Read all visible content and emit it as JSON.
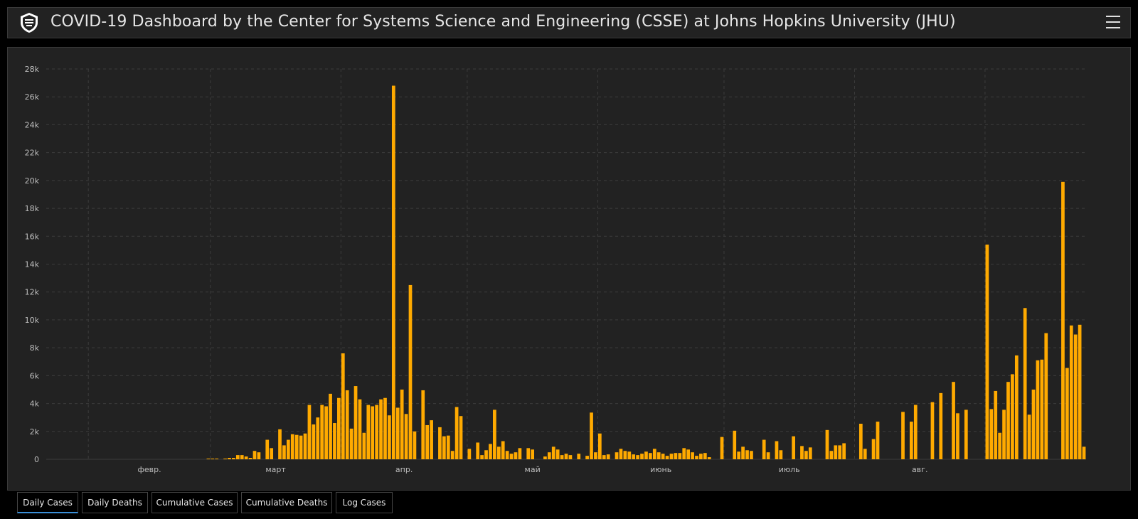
{
  "header": {
    "title": "COVID-19 Dashboard by the Center for Systems Science and Engineering (CSSE) at Johns Hopkins University (JHU)",
    "logo_icon": "jhu-shield-icon",
    "menu_icon": "hamburger-menu-icon"
  },
  "colors": {
    "bar": "#ffaa00",
    "background": "#222222",
    "grid": "#3c3c3c"
  },
  "chart_data": {
    "type": "bar",
    "title": "",
    "xlabel": "",
    "ylabel": "",
    "ylim": [
      0,
      28000
    ],
    "yticks": [
      0,
      2000,
      4000,
      6000,
      8000,
      10000,
      12000,
      14000,
      16000,
      18000,
      20000,
      22000,
      24000,
      26000,
      28000
    ],
    "ytick_labels": [
      "0",
      "2k",
      "4k",
      "6k",
      "8k",
      "10k",
      "12k",
      "14k",
      "16k",
      "18k",
      "20k",
      "22k",
      "24k",
      "26k",
      "28k"
    ],
    "month_labels": [
      "февр.",
      "март",
      "апр.",
      "май",
      "июнь",
      "июль",
      "авг."
    ],
    "grid": true,
    "start_date": "2020-01-22",
    "values": [
      0,
      0,
      0,
      0,
      0,
      0,
      0,
      0,
      0,
      0,
      0,
      0,
      0,
      0,
      0,
      0,
      0,
      0,
      0,
      0,
      0,
      0,
      0,
      0,
      0,
      0,
      0,
      0,
      0,
      0,
      0,
      0,
      0,
      0,
      0,
      0,
      0,
      0,
      50,
      50,
      50,
      0,
      50,
      100,
      100,
      300,
      300,
      200,
      100,
      600,
      500,
      0,
      1400,
      800,
      0,
      2150,
      1000,
      1400,
      1800,
      1750,
      1700,
      1850,
      3900,
      2500,
      3000,
      3900,
      3800,
      4700,
      2600,
      4400,
      7600,
      4950,
      2200,
      5250,
      4300,
      1900,
      3900,
      3800,
      3900,
      4300,
      4400,
      3150,
      26800,
      3700,
      5000,
      3250,
      12500,
      2000,
      0,
      4950,
      2450,
      2800,
      0,
      2300,
      1650,
      1700,
      600,
      3750,
      3100,
      0,
      750,
      0,
      1200,
      300,
      650,
      1100,
      3550,
      900,
      1300,
      600,
      400,
      500,
      800,
      0,
      800,
      700,
      0,
      0,
      200,
      500,
      900,
      700,
      300,
      400,
      300,
      0,
      400,
      0,
      250,
      3350,
      500,
      1850,
      300,
      350,
      0,
      500,
      750,
      600,
      550,
      350,
      300,
      400,
      550,
      450,
      750,
      500,
      400,
      250,
      400,
      450,
      450,
      800,
      700,
      500,
      250,
      400,
      450,
      150,
      0,
      0,
      1600,
      0,
      0,
      2050,
      550,
      900,
      650,
      600,
      0,
      0,
      1400,
      500,
      0,
      1300,
      650,
      0,
      0,
      1650,
      0,
      950,
      600,
      850,
      0,
      0,
      0,
      2100,
      600,
      1000,
      1000,
      1150,
      0,
      0,
      0,
      2550,
      750,
      0,
      1450,
      2700,
      0,
      0,
      0,
      0,
      0,
      3400,
      0,
      2700,
      3900,
      0,
      0,
      0,
      4100,
      0,
      4750,
      0,
      0,
      5550,
      3300,
      0,
      3550,
      0,
      0,
      0,
      0,
      15400,
      3600,
      4900,
      1900,
      3550,
      5550,
      6100,
      7450,
      0,
      10850,
      3200,
      5000,
      7100,
      7150,
      9050,
      0,
      0,
      0,
      19900,
      6550,
      9600,
      8950,
      9650,
      900
    ]
  },
  "tabs": [
    {
      "label": "Daily Cases",
      "active": true
    },
    {
      "label": "Daily Deaths",
      "active": false
    },
    {
      "label": "Cumulative Cases",
      "active": false
    },
    {
      "label": "Cumulative Deaths",
      "active": false
    },
    {
      "label": "Log Cases",
      "active": false
    }
  ]
}
